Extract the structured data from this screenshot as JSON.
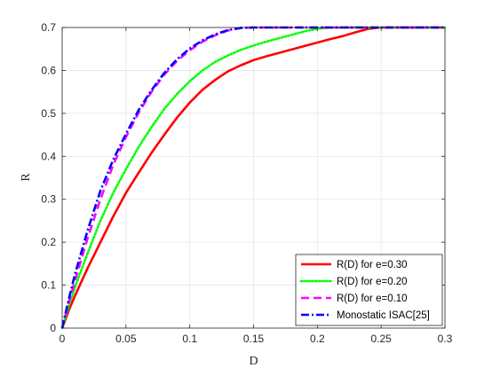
{
  "chart_data": {
    "type": "line",
    "xlabel": "D",
    "ylabel": "R",
    "xlim": [
      0,
      0.3
    ],
    "ylim": [
      0,
      0.7
    ],
    "xticks": [
      "0",
      "0.05",
      "0.1",
      "0.15",
      "0.2",
      "0.25",
      "0.3"
    ],
    "yticks": [
      "0",
      "0.1",
      "0.2",
      "0.3",
      "0.4",
      "0.5",
      "0.6",
      "0.7"
    ],
    "grid": true,
    "legend_position": "bottom-right",
    "series": [
      {
        "name": "R(D) for e=0.30",
        "color": "#ff0000",
        "dash": "solid",
        "x": [
          0,
          0.005,
          0.01,
          0.02,
          0.03,
          0.04,
          0.05,
          0.06,
          0.07,
          0.08,
          0.09,
          0.1,
          0.11,
          0.12,
          0.13,
          0.14,
          0.15,
          0.16,
          0.17,
          0.18,
          0.19,
          0.2,
          0.21,
          0.22,
          0.23,
          0.24,
          0.25,
          0.3
        ],
        "y": [
          0,
          0.04,
          0.075,
          0.14,
          0.2,
          0.26,
          0.315,
          0.362,
          0.408,
          0.45,
          0.49,
          0.525,
          0.555,
          0.578,
          0.598,
          0.612,
          0.624,
          0.633,
          0.641,
          0.649,
          0.657,
          0.665,
          0.673,
          0.68,
          0.689,
          0.697,
          0.7,
          0.7
        ]
      },
      {
        "name": "R(D) for e=0.20",
        "color": "#00ff00",
        "dash": "dotted",
        "x": [
          0,
          0.005,
          0.01,
          0.02,
          0.03,
          0.04,
          0.05,
          0.06,
          0.07,
          0.08,
          0.09,
          0.1,
          0.11,
          0.12,
          0.13,
          0.14,
          0.15,
          0.16,
          0.17,
          0.18,
          0.19,
          0.2,
          0.21,
          0.22,
          0.23,
          0.24,
          0.25,
          0.3
        ],
        "y": [
          0,
          0.05,
          0.095,
          0.175,
          0.25,
          0.315,
          0.37,
          0.422,
          0.468,
          0.51,
          0.545,
          0.575,
          0.6,
          0.62,
          0.635,
          0.648,
          0.658,
          0.667,
          0.675,
          0.683,
          0.691,
          0.697,
          0.7,
          0.7,
          0.7,
          0.7,
          0.7,
          0.7
        ]
      },
      {
        "name": "R(D) for e=0.10",
        "color": "#ff00ff",
        "dash": "dashed",
        "x": [
          0,
          0.005,
          0.01,
          0.02,
          0.03,
          0.04,
          0.05,
          0.06,
          0.07,
          0.08,
          0.09,
          0.1,
          0.11,
          0.12,
          0.13,
          0.14,
          0.15,
          0.16,
          0.2,
          0.25,
          0.3
        ],
        "y": [
          0,
          0.058,
          0.11,
          0.21,
          0.3,
          0.38,
          0.445,
          0.502,
          0.55,
          0.59,
          0.622,
          0.647,
          0.667,
          0.682,
          0.693,
          0.699,
          0.7,
          0.7,
          0.7,
          0.7,
          0.7
        ]
      },
      {
        "name": "Monostatic ISAC[25]",
        "color": "#0000ff",
        "dash": "dashdot",
        "x": [
          0,
          0.005,
          0.01,
          0.02,
          0.03,
          0.04,
          0.05,
          0.06,
          0.07,
          0.08,
          0.09,
          0.1,
          0.11,
          0.12,
          0.13,
          0.14,
          0.15,
          0.16,
          0.2,
          0.25,
          0.3
        ],
        "y": [
          0,
          0.065,
          0.125,
          0.228,
          0.32,
          0.392,
          0.452,
          0.508,
          0.554,
          0.594,
          0.626,
          0.651,
          0.67,
          0.684,
          0.694,
          0.699,
          0.7,
          0.7,
          0.7,
          0.7,
          0.7
        ]
      }
    ]
  }
}
